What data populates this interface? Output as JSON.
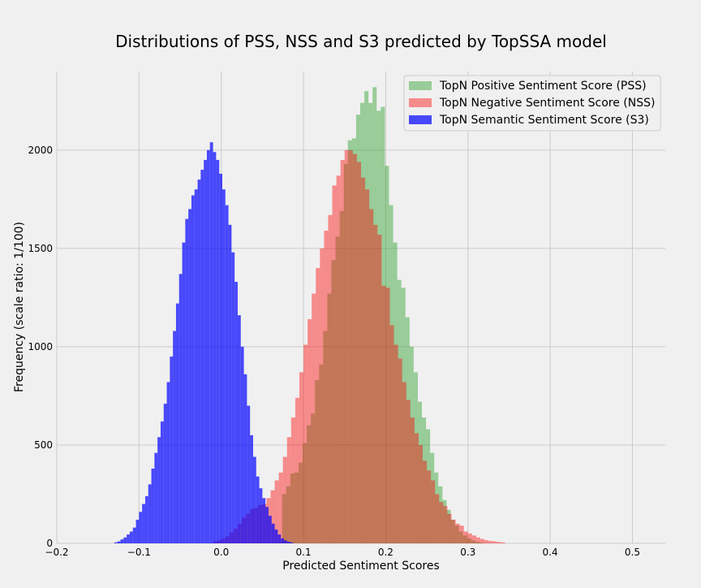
{
  "chart_data": {
    "type": "bar",
    "histogram": true,
    "title": "Distributions of PSS, NSS and S3 predicted by TopSSA model",
    "xlabel": "Predicted Sentiment Scores",
    "ylabel": "Frequency (scale ratio: 1/100)",
    "xlim": [
      -0.2,
      0.54
    ],
    "ylim": [
      0,
      2400
    ],
    "x_ticks": [
      -0.2,
      -0.1,
      0.0,
      0.1,
      0.2,
      0.3,
      0.4,
      0.5
    ],
    "x_tick_labels": [
      "−0.2",
      "−0.1",
      "0.0",
      "0.1",
      "0.2",
      "0.3",
      "0.4",
      "0.5"
    ],
    "y_ticks": [
      0,
      500,
      1000,
      1500,
      2000
    ],
    "y_tick_labels": [
      "0",
      "500",
      "1000",
      "1500",
      "2000"
    ],
    "grid": true,
    "legend_position": "upper-right",
    "series": [
      {
        "name": "TopN Positive Sentiment Score (PSS)",
        "color": "#2ca02c",
        "opacity": 0.45,
        "bin_start": 0.074,
        "bin_width": 0.005,
        "values": [
          250,
          290,
          355,
          360,
          410,
          510,
          600,
          660,
          830,
          910,
          1080,
          1270,
          1440,
          1560,
          1690,
          1930,
          2050,
          2060,
          2180,
          2240,
          2300,
          2240,
          2320,
          2200,
          2220,
          1920,
          1720,
          1530,
          1340,
          1300,
          1150,
          1000,
          870,
          720,
          640,
          580,
          460,
          360,
          290,
          220,
          170,
          120,
          90,
          60,
          40,
          25,
          15,
          8,
          4
        ]
      },
      {
        "name": "TopN Negative Sentiment Score (NSS)",
        "color": "#ff0000",
        "opacity": 0.42,
        "bin_start": -0.01,
        "bin_width": 0.005,
        "values": [
          10,
          15,
          25,
          35,
          55,
          75,
          100,
          130,
          150,
          175,
          180,
          195,
          200,
          230,
          270,
          320,
          360,
          440,
          540,
          640,
          740,
          870,
          1010,
          1140,
          1270,
          1400,
          1500,
          1590,
          1670,
          1820,
          1870,
          1950,
          2000,
          2000,
          1980,
          1940,
          1860,
          1800,
          1700,
          1620,
          1570,
          1310,
          1300,
          1110,
          1010,
          940,
          820,
          730,
          640,
          560,
          500,
          420,
          370,
          320,
          250,
          210,
          190,
          150,
          120,
          100,
          90,
          60,
          50,
          40,
          30,
          22,
          16,
          12,
          10,
          7,
          5
        ]
      },
      {
        "name": "TopN Semantic Sentiment Score (S3)",
        "color": "#0000ff",
        "opacity": 0.7,
        "bin_start": -0.13,
        "bin_width": 0.00375,
        "values": [
          5,
          10,
          20,
          30,
          45,
          60,
          80,
          120,
          160,
          200,
          240,
          300,
          380,
          460,
          540,
          620,
          710,
          820,
          950,
          1080,
          1220,
          1370,
          1530,
          1650,
          1700,
          1770,
          1800,
          1850,
          1900,
          1950,
          2000,
          2040,
          1990,
          1950,
          1880,
          1800,
          1720,
          1620,
          1480,
          1330,
          1160,
          1000,
          860,
          700,
          550,
          440,
          340,
          280,
          230,
          185,
          140,
          100,
          70,
          45,
          25,
          15,
          8,
          4
        ]
      }
    ]
  }
}
